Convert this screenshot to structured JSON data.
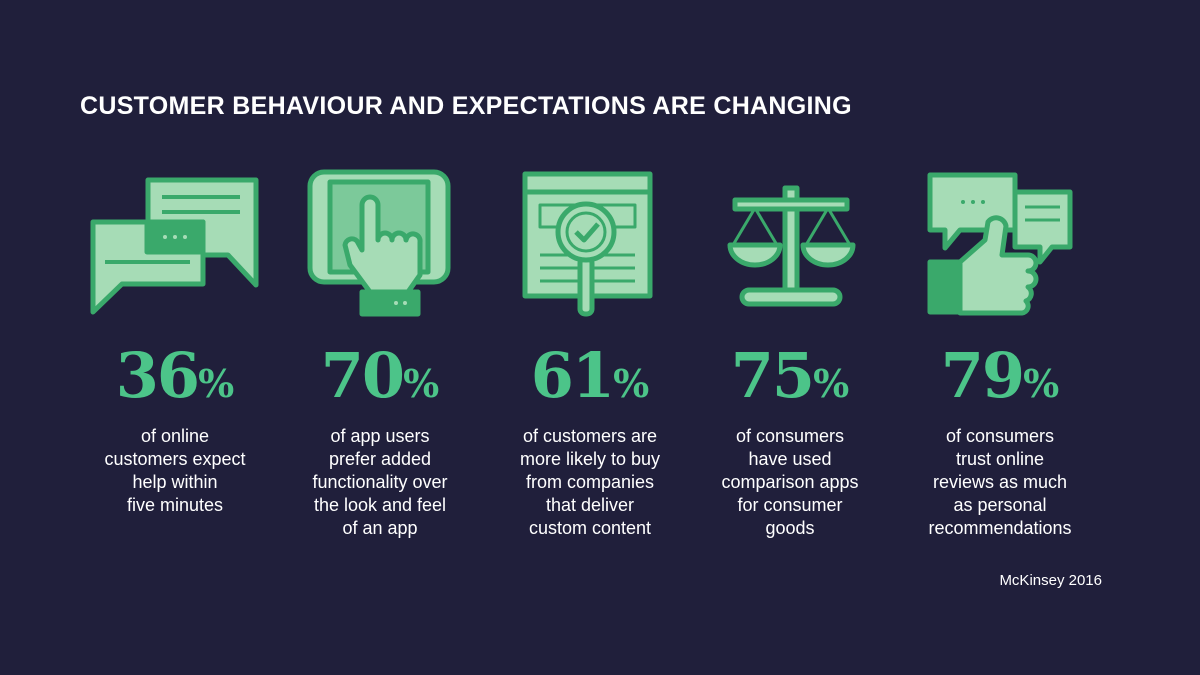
{
  "header": {
    "title": "CUSTOMER BEHAVIOUR AND EXPECTATIONS ARE CHANGING"
  },
  "stats": [
    {
      "number": "36",
      "unit": "%",
      "lines": [
        "of online",
        "customers expect",
        "help within",
        "five minutes"
      ]
    },
    {
      "number": "70",
      "unit": "%",
      "lines": [
        "of app users",
        "prefer added",
        "functionality over",
        "the look and feel",
        "of an app"
      ]
    },
    {
      "number": "61",
      "unit": "%",
      "lines": [
        "of customers are",
        "more likely to buy",
        "from companies",
        "that deliver",
        "custom content"
      ]
    },
    {
      "number": "75",
      "unit": "%",
      "lines": [
        "of consumers",
        "have used",
        "comparison apps",
        "for consumer",
        "goods"
      ]
    },
    {
      "number": "79",
      "unit": "%",
      "lines": [
        "of consumers",
        "trust online",
        "reviews as much",
        "as personal",
        "recommendations"
      ]
    }
  ],
  "source": "McKinsey 2016"
}
